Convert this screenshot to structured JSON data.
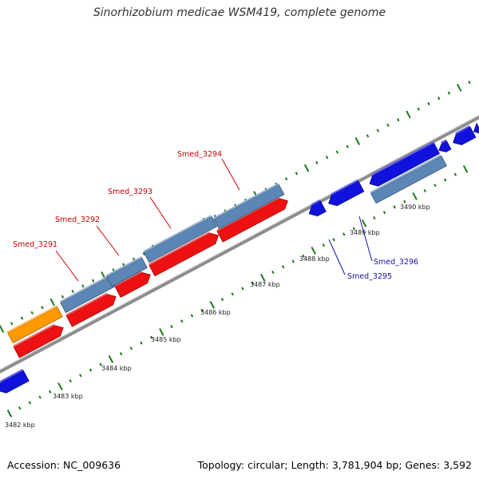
{
  "title": "Sinorhizobium medicae WSM419, complete genome",
  "footer": {
    "accession": "Accession: NC_009636",
    "summary": "Topology: circular; Length: 3,781,904 bp; Genes: 3,592"
  },
  "colors": {
    "backbone": "#8c8c8c",
    "tick": "#1a7a1a",
    "cds_red": "#ee1111",
    "cds_blue": "#1111dd",
    "cds_orange": "#ff9900",
    "gene_steel": "#5b86b5",
    "label_red": "#cc0000",
    "label_blue": "#1111aa"
  },
  "scale": {
    "labels": [
      "3482 kbp",
      "3483 kbp",
      "3484 kbp",
      "3485 kbp",
      "3486 kbp",
      "3487 kbp",
      "3488 kbp",
      "3489 kbp",
      "3490 kbp"
    ]
  },
  "gene_labels": [
    {
      "text": "Smed_3291",
      "color": "red"
    },
    {
      "text": "Smed_3292",
      "color": "red"
    },
    {
      "text": "Smed_3293",
      "color": "red"
    },
    {
      "text": "Smed_3294",
      "color": "red"
    },
    {
      "text": "Smed_3295",
      "color": "blue"
    },
    {
      "text": "Smed_3296",
      "color": "blue"
    }
  ]
}
